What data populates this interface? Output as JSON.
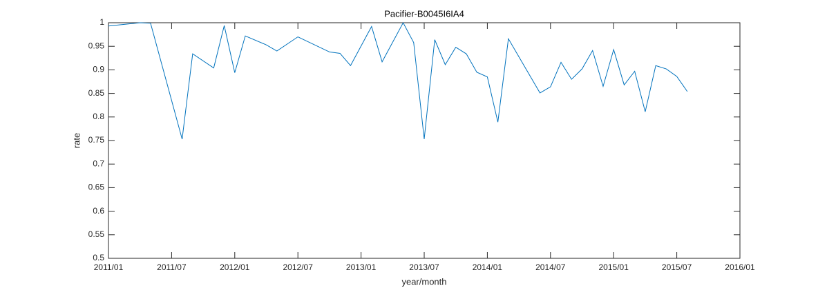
{
  "chart_data": {
    "type": "line",
    "title": "Pacifier-B0045I6IA4",
    "x_label": "year/month",
    "y_label": "rate",
    "x": [
      "2011/01",
      "2011/04",
      "2011/05",
      "2011/08",
      "2011/09",
      "2011/11",
      "2011/12",
      "2012/01",
      "2012/02",
      "2012/04",
      "2012/05",
      "2012/07",
      "2012/10",
      "2012/11",
      "2012/12",
      "2013/02",
      "2013/03",
      "2013/05",
      "2013/06",
      "2013/07",
      "2013/08",
      "2013/09",
      "2013/10",
      "2013/11",
      "2013/12",
      "2014/01",
      "2014/02",
      "2014/03",
      "2014/06",
      "2014/07",
      "2014/08",
      "2014/09",
      "2014/10",
      "2014/11",
      "2014/12",
      "2015/01",
      "2015/02",
      "2015/03",
      "2015/04",
      "2015/05",
      "2015/06",
      "2015/07",
      "2015/08"
    ],
    "series": [
      {
        "color": "#0072bd",
        "values": [
          0.993,
          1.0,
          0.999,
          0.753,
          0.934,
          0.904,
          0.994,
          0.894,
          0.972,
          0.953,
          0.94,
          0.97,
          0.938,
          0.935,
          0.909,
          0.992,
          0.917,
          1.0,
          0.958,
          0.753,
          0.964,
          0.911,
          0.948,
          0.934,
          0.895,
          0.885,
          0.789,
          0.966,
          0.851,
          0.864,
          0.916,
          0.88,
          0.902,
          0.941,
          0.865,
          0.943,
          0.868,
          0.897,
          0.811,
          0.909,
          0.902,
          0.886,
          0.854
        ]
      }
    ],
    "xlim": [
      "2011/01",
      "2016/01"
    ],
    "xticks": [
      "2011/01",
      "2011/07",
      "2012/01",
      "2012/07",
      "2013/01",
      "2013/07",
      "2014/01",
      "2014/07",
      "2015/01",
      "2015/07",
      "2016/01"
    ],
    "ylim": [
      0.5,
      1
    ],
    "yticks": [
      0.5,
      0.55,
      0.6,
      0.65,
      0.7,
      0.75,
      0.8,
      0.85,
      0.9,
      0.95,
      1
    ]
  }
}
